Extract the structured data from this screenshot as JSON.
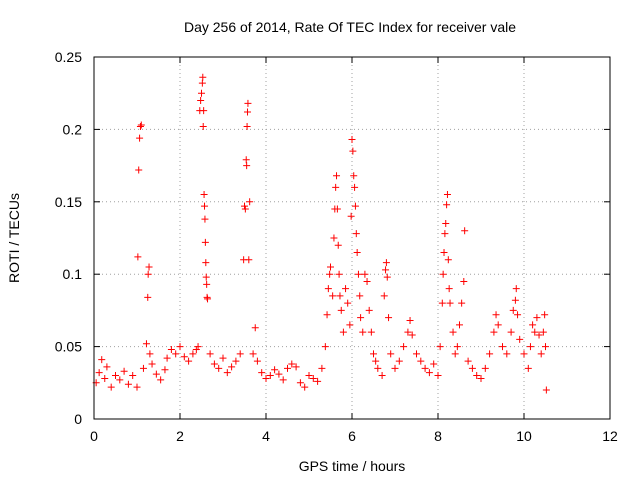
{
  "chart_data": {
    "type": "scatter",
    "title": "Day 256 of 2014, Rate Of TEC Index for receiver vale",
    "xlabel": "GPS time / hours",
    "ylabel": "ROTI / TECUs",
    "xlim": [
      0,
      12
    ],
    "ylim": [
      0,
      0.25
    ],
    "x_ticks": [
      0,
      2,
      4,
      6,
      8,
      10,
      12
    ],
    "x_tick_labels": [
      "0",
      "2",
      "4",
      "6",
      "8",
      "10",
      "12"
    ],
    "y_ticks": [
      0,
      0.05,
      0.1,
      0.15,
      0.2,
      0.25
    ],
    "y_tick_labels": [
      "0",
      "0.05",
      "0.1",
      "0.15",
      "0.2",
      "0.25"
    ],
    "grid": true,
    "marker": "+",
    "series_color": "#ff0000",
    "series": [
      {
        "name": "ROTI",
        "points": [
          [
            0.05,
            0.025
          ],
          [
            0.12,
            0.032
          ],
          [
            0.18,
            0.041
          ],
          [
            0.25,
            0.028
          ],
          [
            0.3,
            0.036
          ],
          [
            0.4,
            0.022
          ],
          [
            0.5,
            0.03
          ],
          [
            0.6,
            0.027
          ],
          [
            0.7,
            0.033
          ],
          [
            0.8,
            0.024
          ],
          [
            0.9,
            0.03
          ],
          [
            1.0,
            0.022
          ],
          [
            1.02,
            0.112
          ],
          [
            1.04,
            0.172
          ],
          [
            1.06,
            0.194
          ],
          [
            1.08,
            0.202
          ],
          [
            1.1,
            0.203
          ],
          [
            1.15,
            0.035
          ],
          [
            1.22,
            0.052
          ],
          [
            1.25,
            0.084
          ],
          [
            1.26,
            0.1
          ],
          [
            1.28,
            0.105
          ],
          [
            1.3,
            0.045
          ],
          [
            1.35,
            0.038
          ],
          [
            1.45,
            0.031
          ],
          [
            1.55,
            0.027
          ],
          [
            1.65,
            0.034
          ],
          [
            1.7,
            0.042
          ],
          [
            1.8,
            0.048
          ],
          [
            1.9,
            0.045
          ],
          [
            2.0,
            0.05
          ],
          [
            2.1,
            0.043
          ],
          [
            2.2,
            0.04
          ],
          [
            2.3,
            0.045
          ],
          [
            2.38,
            0.048
          ],
          [
            2.42,
            0.05
          ],
          [
            2.46,
            0.213
          ],
          [
            2.48,
            0.22
          ],
          [
            2.5,
            0.225
          ],
          [
            2.52,
            0.232
          ],
          [
            2.53,
            0.236
          ],
          [
            2.54,
            0.202
          ],
          [
            2.55,
            0.213
          ],
          [
            2.56,
            0.155
          ],
          [
            2.57,
            0.147
          ],
          [
            2.58,
            0.138
          ],
          [
            2.59,
            0.122
          ],
          [
            2.6,
            0.108
          ],
          [
            2.61,
            0.098
          ],
          [
            2.62,
            0.093
          ],
          [
            2.63,
            0.084
          ],
          [
            2.64,
            0.083
          ],
          [
            2.7,
            0.045
          ],
          [
            2.8,
            0.038
          ],
          [
            2.9,
            0.035
          ],
          [
            3.0,
            0.042
          ],
          [
            3.1,
            0.032
          ],
          [
            3.2,
            0.036
          ],
          [
            3.3,
            0.04
          ],
          [
            3.4,
            0.045
          ],
          [
            3.48,
            0.11
          ],
          [
            3.5,
            0.147
          ],
          [
            3.52,
            0.145
          ],
          [
            3.54,
            0.179
          ],
          [
            3.55,
            0.175
          ],
          [
            3.56,
            0.202
          ],
          [
            3.57,
            0.212
          ],
          [
            3.58,
            0.218
          ],
          [
            3.6,
            0.11
          ],
          [
            3.62,
            0.15
          ],
          [
            3.7,
            0.045
          ],
          [
            3.75,
            0.063
          ],
          [
            3.8,
            0.04
          ],
          [
            3.9,
            0.032
          ],
          [
            4.0,
            0.028
          ],
          [
            4.1,
            0.03
          ],
          [
            4.2,
            0.034
          ],
          [
            4.3,
            0.031
          ],
          [
            4.4,
            0.027
          ],
          [
            4.5,
            0.035
          ],
          [
            4.6,
            0.038
          ],
          [
            4.7,
            0.036
          ],
          [
            4.8,
            0.025
          ],
          [
            4.9,
            0.022
          ],
          [
            5.0,
            0.03
          ],
          [
            5.1,
            0.028
          ],
          [
            5.2,
            0.026
          ],
          [
            5.3,
            0.035
          ],
          [
            5.38,
            0.05
          ],
          [
            5.42,
            0.072
          ],
          [
            5.45,
            0.09
          ],
          [
            5.48,
            0.1
          ],
          [
            5.5,
            0.105
          ],
          [
            5.55,
            0.085
          ],
          [
            5.58,
            0.125
          ],
          [
            5.6,
            0.145
          ],
          [
            5.62,
            0.16
          ],
          [
            5.64,
            0.168
          ],
          [
            5.66,
            0.145
          ],
          [
            5.68,
            0.12
          ],
          [
            5.7,
            0.1
          ],
          [
            5.72,
            0.085
          ],
          [
            5.75,
            0.075
          ],
          [
            5.8,
            0.06
          ],
          [
            5.85,
            0.09
          ],
          [
            5.9,
            0.08
          ],
          [
            5.95,
            0.065
          ],
          [
            5.98,
            0.14
          ],
          [
            6.0,
            0.193
          ],
          [
            6.02,
            0.185
          ],
          [
            6.04,
            0.168
          ],
          [
            6.06,
            0.16
          ],
          [
            6.08,
            0.147
          ],
          [
            6.1,
            0.128
          ],
          [
            6.12,
            0.115
          ],
          [
            6.15,
            0.1
          ],
          [
            6.18,
            0.085
          ],
          [
            6.2,
            0.07
          ],
          [
            6.25,
            0.06
          ],
          [
            6.3,
            0.1
          ],
          [
            6.35,
            0.095
          ],
          [
            6.4,
            0.075
          ],
          [
            6.45,
            0.06
          ],
          [
            6.5,
            0.045
          ],
          [
            6.55,
            0.04
          ],
          [
            6.6,
            0.035
          ],
          [
            6.7,
            0.03
          ],
          [
            6.75,
            0.085
          ],
          [
            6.78,
            0.103
          ],
          [
            6.8,
            0.108
          ],
          [
            6.82,
            0.098
          ],
          [
            6.85,
            0.07
          ],
          [
            6.9,
            0.045
          ],
          [
            7.0,
            0.035
          ],
          [
            7.1,
            0.04
          ],
          [
            7.2,
            0.05
          ],
          [
            7.3,
            0.06
          ],
          [
            7.35,
            0.068
          ],
          [
            7.4,
            0.058
          ],
          [
            7.5,
            0.045
          ],
          [
            7.6,
            0.04
          ],
          [
            7.7,
            0.035
          ],
          [
            7.8,
            0.032
          ],
          [
            7.9,
            0.038
          ],
          [
            8.0,
            0.03
          ],
          [
            8.05,
            0.05
          ],
          [
            8.1,
            0.08
          ],
          [
            8.12,
            0.1
          ],
          [
            8.14,
            0.115
          ],
          [
            8.16,
            0.128
          ],
          [
            8.18,
            0.135
          ],
          [
            8.2,
            0.148
          ],
          [
            8.22,
            0.155
          ],
          [
            8.24,
            0.11
          ],
          [
            8.26,
            0.09
          ],
          [
            8.28,
            0.08
          ],
          [
            8.35,
            0.06
          ],
          [
            8.4,
            0.045
          ],
          [
            8.45,
            0.05
          ],
          [
            8.5,
            0.065
          ],
          [
            8.55,
            0.08
          ],
          [
            8.6,
            0.095
          ],
          [
            8.62,
            0.13
          ],
          [
            8.7,
            0.04
          ],
          [
            8.8,
            0.035
          ],
          [
            8.9,
            0.03
          ],
          [
            9.0,
            0.028
          ],
          [
            9.1,
            0.035
          ],
          [
            9.2,
            0.045
          ],
          [
            9.3,
            0.06
          ],
          [
            9.35,
            0.072
          ],
          [
            9.4,
            0.065
          ],
          [
            9.5,
            0.05
          ],
          [
            9.6,
            0.045
          ],
          [
            9.7,
            0.06
          ],
          [
            9.75,
            0.075
          ],
          [
            9.8,
            0.082
          ],
          [
            9.82,
            0.09
          ],
          [
            9.85,
            0.072
          ],
          [
            9.9,
            0.055
          ],
          [
            10.0,
            0.045
          ],
          [
            10.1,
            0.035
          ],
          [
            10.15,
            0.05
          ],
          [
            10.2,
            0.065
          ],
          [
            10.25,
            0.06
          ],
          [
            10.3,
            0.07
          ],
          [
            10.35,
            0.058
          ],
          [
            10.4,
            0.045
          ],
          [
            10.45,
            0.06
          ],
          [
            10.48,
            0.072
          ],
          [
            10.5,
            0.05
          ],
          [
            10.52,
            0.02
          ]
        ]
      }
    ]
  }
}
